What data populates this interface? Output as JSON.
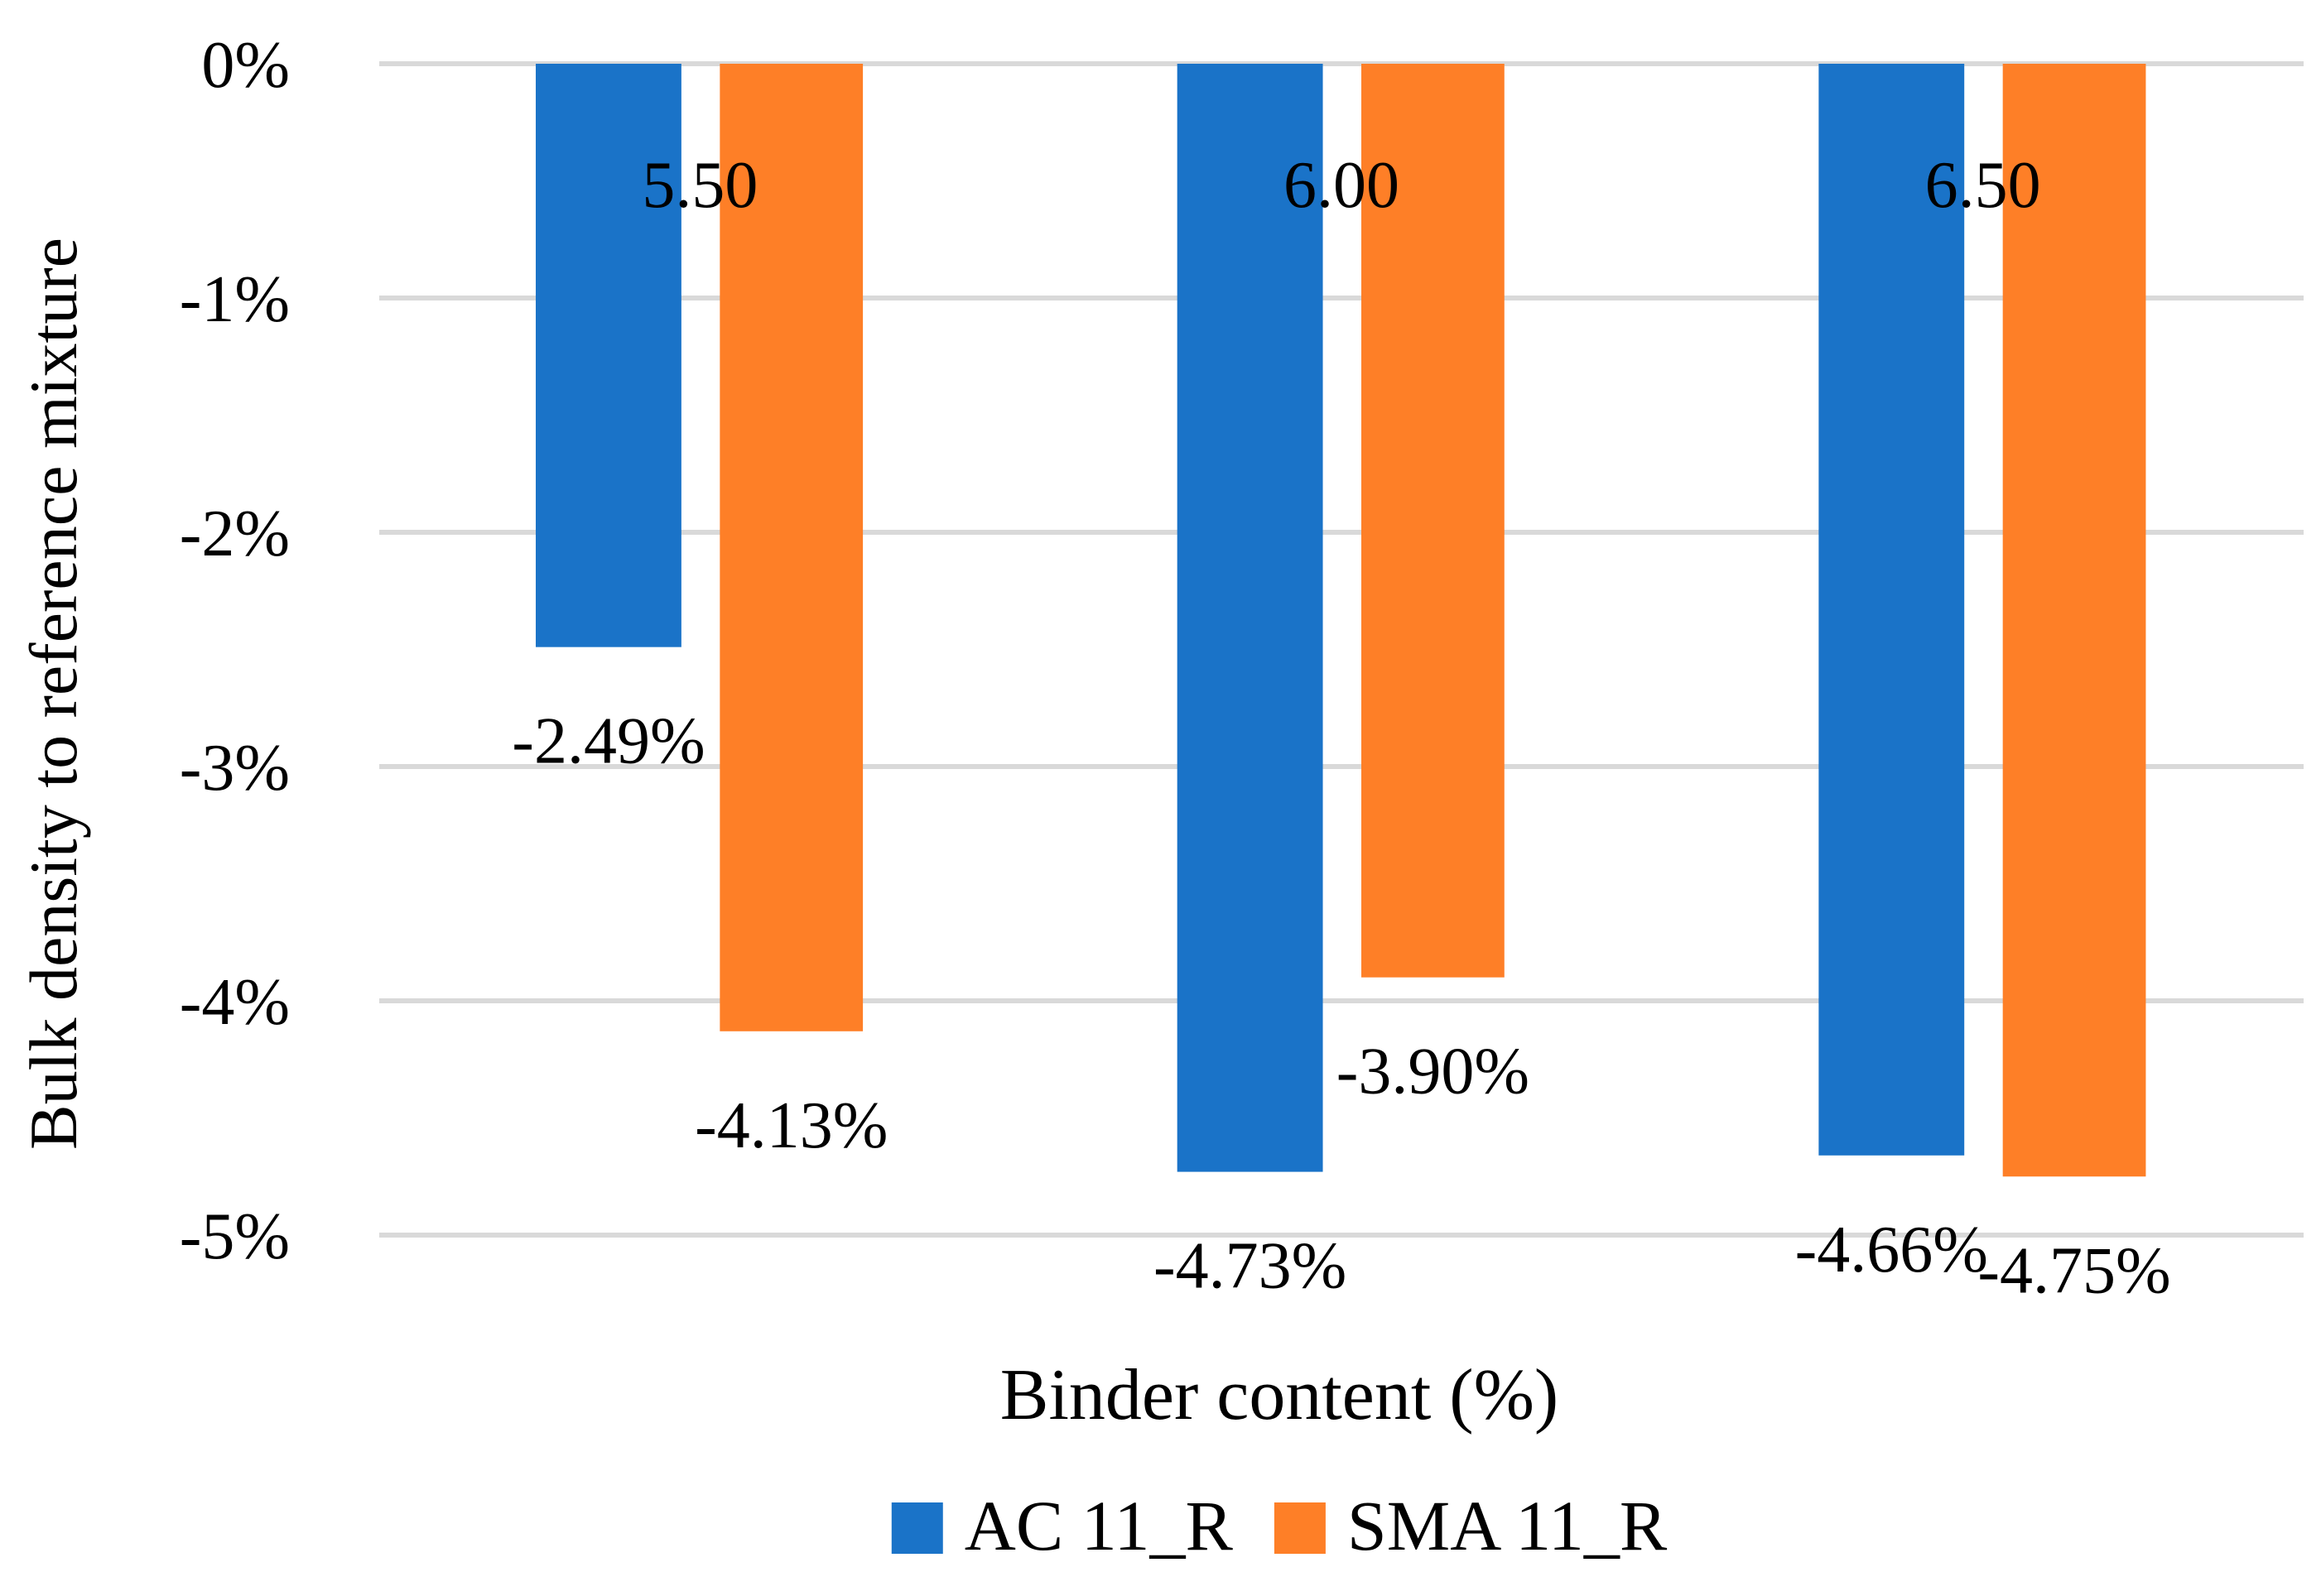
{
  "chart_data": {
    "type": "bar",
    "x_label": "Binder content (%)",
    "y_label": "Bulk density to reference mixture",
    "categories": [
      "5.50",
      "6.00",
      "6.50"
    ],
    "series": [
      {
        "name": "AC 11_R",
        "color": "#1a73c8",
        "values": [
          -2.49,
          -4.73,
          -4.66
        ],
        "value_labels": [
          "-2.49%",
          "-4.73%",
          "-4.66%"
        ]
      },
      {
        "name": "SMA 11_R",
        "color": "#fe7f27",
        "values": [
          -4.13,
          -3.9,
          -4.75
        ],
        "value_labels": [
          "-4.13%",
          "-3.90%",
          "-4.75%"
        ]
      }
    ],
    "ylim": [
      0,
      -5
    ],
    "yticks": [
      {
        "value": 0,
        "label": "0%"
      },
      {
        "value": -1,
        "label": "-1%"
      },
      {
        "value": -2,
        "label": "-2%"
      },
      {
        "value": -3,
        "label": "-3%"
      },
      {
        "value": -4,
        "label": "-4%"
      },
      {
        "value": -5,
        "label": "-5%"
      }
    ],
    "grid": true,
    "legend": "bottom"
  }
}
